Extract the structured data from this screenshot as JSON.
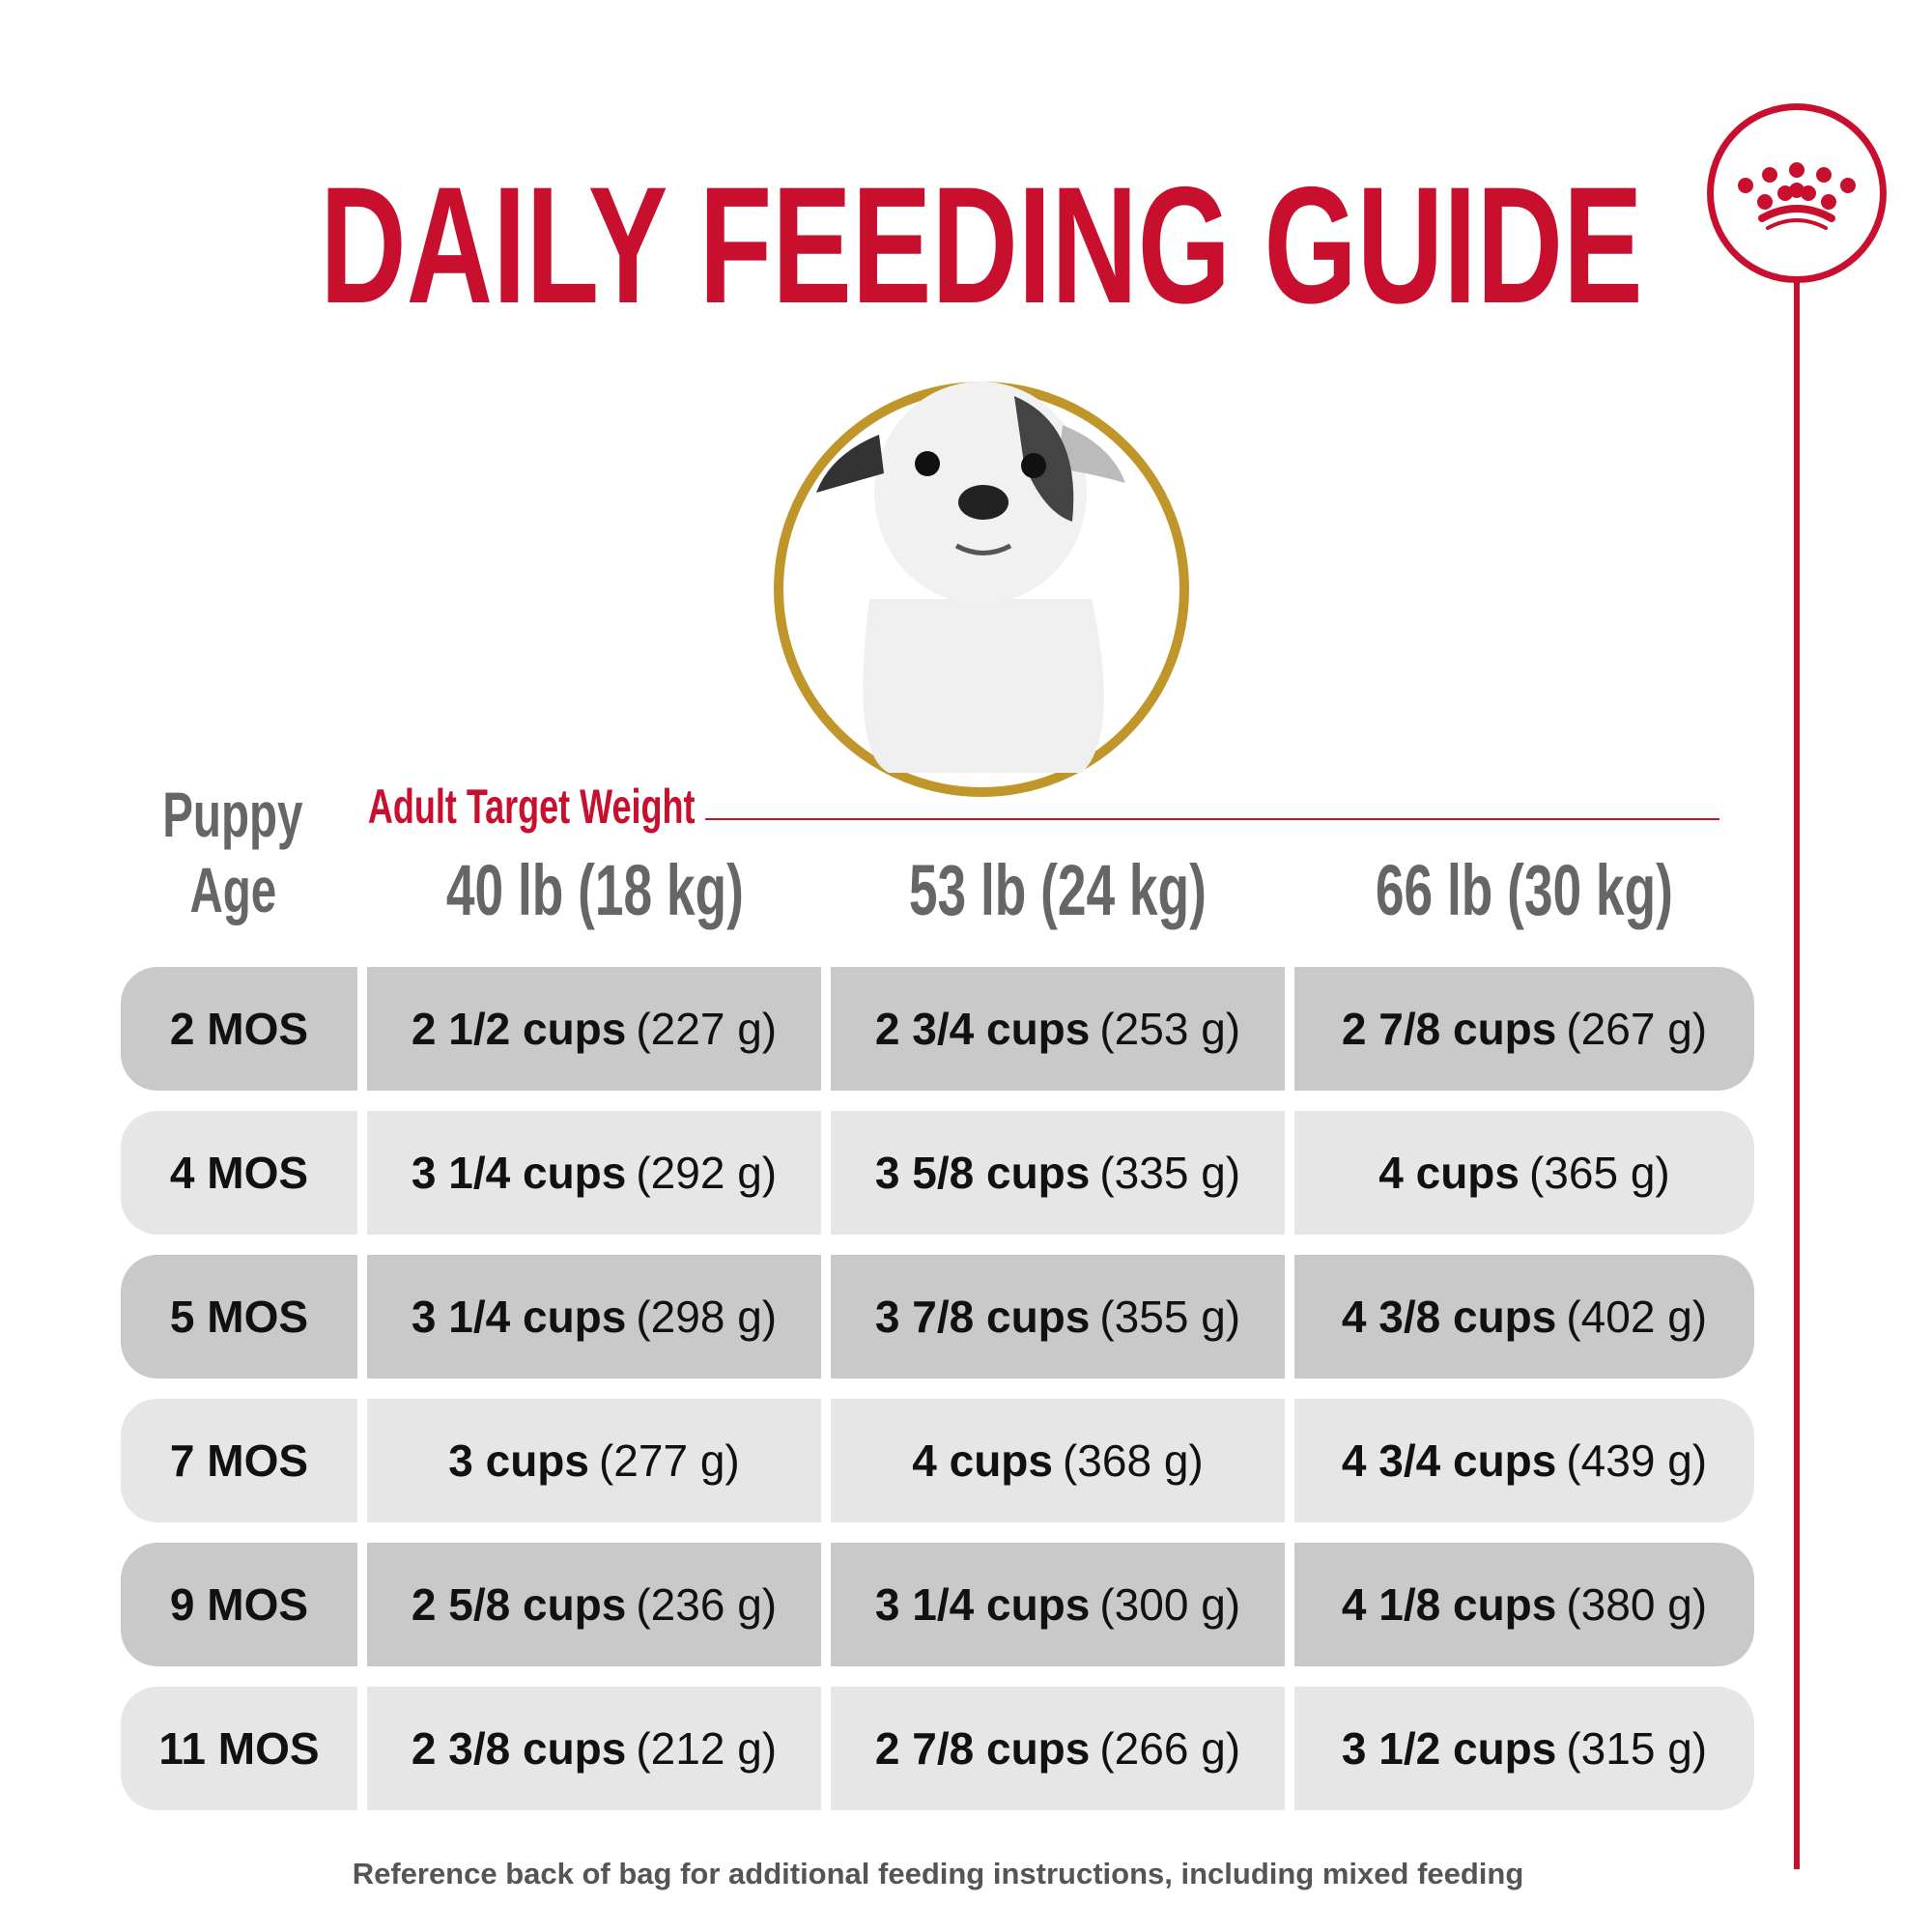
{
  "title": "DAILY FEEDING GUIDE",
  "colors": {
    "brand": "#c8102e",
    "gold": "#c0962a",
    "row_dark": "#c9c9c9",
    "row_light": "#e6e6e6"
  },
  "header": {
    "puppy": "Puppy",
    "age": "Age",
    "adult_target": "Adult Target Weight",
    "weights": [
      "40 lb (18 kg)",
      "53 lb (24 kg)",
      "66 lb (30 kg)"
    ]
  },
  "rows": [
    {
      "age": "2 MOS",
      "cells": [
        {
          "cups": "2 1/2 cups",
          "grams": "(227 g)"
        },
        {
          "cups": "2 3/4 cups",
          "grams": "(253 g)"
        },
        {
          "cups": "2 7/8 cups",
          "grams": "(267 g)"
        }
      ]
    },
    {
      "age": "4 MOS",
      "cells": [
        {
          "cups": "3 1/4 cups",
          "grams": "(292 g)"
        },
        {
          "cups": "3 5/8 cups",
          "grams": "(335 g)"
        },
        {
          "cups": "4 cups",
          "grams": "(365 g)"
        }
      ]
    },
    {
      "age": "5 MOS",
      "cells": [
        {
          "cups": "3 1/4 cups",
          "grams": "(298 g)"
        },
        {
          "cups": "3 7/8 cups",
          "grams": "(355 g)"
        },
        {
          "cups": "4 3/8 cups",
          "grams": "(402 g)"
        }
      ]
    },
    {
      "age": "7 MOS",
      "cells": [
        {
          "cups": "3 cups",
          "grams": "(277 g)"
        },
        {
          "cups": "4 cups",
          "grams": "(368 g)"
        },
        {
          "cups": "4 3/4 cups",
          "grams": "(439 g)"
        }
      ]
    },
    {
      "age": "9 MOS",
      "cells": [
        {
          "cups": "2 5/8 cups",
          "grams": "(236 g)"
        },
        {
          "cups": "3 1/4 cups",
          "grams": "(300 g)"
        },
        {
          "cups": "4 1/8 cups",
          "grams": "(380 g)"
        }
      ]
    },
    {
      "age": "11 MOS",
      "cells": [
        {
          "cups": "2 3/8 cups",
          "grams": "(212 g)"
        },
        {
          "cups": "2 7/8 cups",
          "grams": "(266 g)"
        },
        {
          "cups": "3 1/2 cups",
          "grams": "(315 g)"
        }
      ]
    }
  ],
  "footer": "Reference back of bag for additional feeding instructions, including mixed feeding"
}
